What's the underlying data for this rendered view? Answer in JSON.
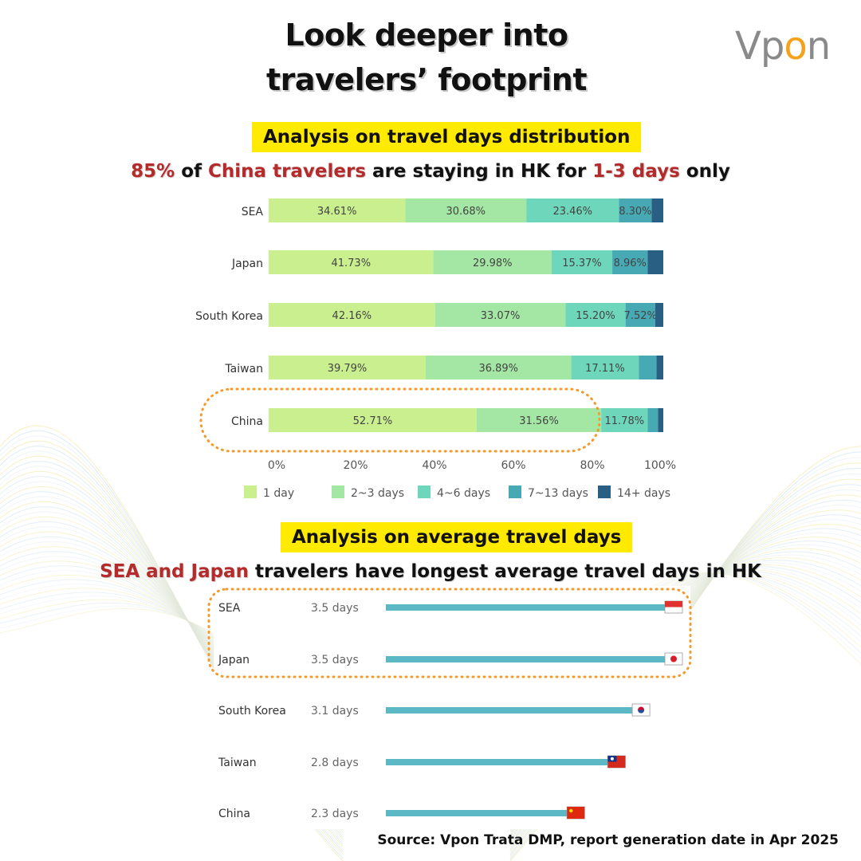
{
  "header": {
    "title_line1": "Look deeper into",
    "title_line2": "travelers’ footprint",
    "logo_prefix": "Vp",
    "logo_o": "o",
    "logo_suffix": "n"
  },
  "section1": {
    "band": "Analysis on travel days distribution",
    "headline": {
      "p1": "85%",
      "p2": " of ",
      "p3": "China travelers",
      "p4": " are staying in HK for ",
      "p5": "1-3 days",
      "p6": " only"
    }
  },
  "section2": {
    "band": "Analysis on average travel days",
    "headline": {
      "p1": "SEA and Japan",
      "p2": " travelers have longest average travel days in HK"
    }
  },
  "source": "Source: Vpon Trata DMP, report generation date in Apr 2025",
  "colors": {
    "band": "#ffea00",
    "highlight": "#b52a2a",
    "callout": "#f39a2b",
    "avg_bar": "#5bb8c4"
  },
  "chart_data": [
    {
      "type": "bar",
      "orientation": "horizontal",
      "stacked": true,
      "categories": [
        "SEA",
        "Japan",
        "South Korea",
        "Taiwan",
        "China"
      ],
      "series": [
        {
          "name": "1 day",
          "color": "#c9ef8f",
          "values": [
            34.61,
            41.73,
            42.16,
            39.79,
            52.71
          ],
          "labels": [
            "34.61%",
            "41.73%",
            "42.16%",
            "39.79%",
            "52.71%"
          ]
        },
        {
          "name": "2~3 days",
          "color": "#a4e6a4",
          "values": [
            30.68,
            29.98,
            33.07,
            36.89,
            31.56
          ],
          "labels": [
            "30.68%",
            "29.98%",
            "33.07%",
            "36.89%",
            "31.56%"
          ]
        },
        {
          "name": "4~6 days",
          "color": "#6ed6bb",
          "values": [
            23.46,
            15.37,
            15.2,
            17.11,
            11.78
          ],
          "labels": [
            "23.46%",
            "15.37%",
            "15.20%",
            "17.11%",
            "11.78%"
          ]
        },
        {
          "name": "7~13 days",
          "color": "#46a9b3",
          "values": [
            8.3,
            8.96,
            7.52,
            4.5,
            2.6
          ],
          "labels": [
            "8.30%",
            "8.96%",
            "7.52%",
            "",
            ""
          ]
        },
        {
          "name": "14+ days",
          "color": "#2a5f84",
          "values": [
            2.95,
            3.96,
            2.05,
            1.71,
            1.35
          ],
          "labels": [
            "",
            "",
            "",
            "",
            ""
          ]
        }
      ],
      "x_ticks": [
        "0%",
        "20%",
        "40%",
        "60%",
        "80%",
        "100%"
      ],
      "xlim": [
        0,
        100
      ],
      "legend_position": "bottom",
      "highlighted_category": "China"
    },
    {
      "type": "bar",
      "orientation": "horizontal",
      "categories": [
        "SEA",
        "Japan",
        "South Korea",
        "Taiwan",
        "China"
      ],
      "values": [
        3.5,
        3.5,
        3.1,
        2.8,
        2.3
      ],
      "value_labels": [
        "3.5 days",
        "3.5 days",
        "3.1 days",
        "2.8 days",
        "2.3 days"
      ],
      "flags": [
        "singapore-flag-icon",
        "japan-flag-icon",
        "south-korea-flag-icon",
        "taiwan-flag-icon",
        "china-flag-icon"
      ],
      "highlighted_categories": [
        "SEA",
        "Japan"
      ]
    }
  ]
}
